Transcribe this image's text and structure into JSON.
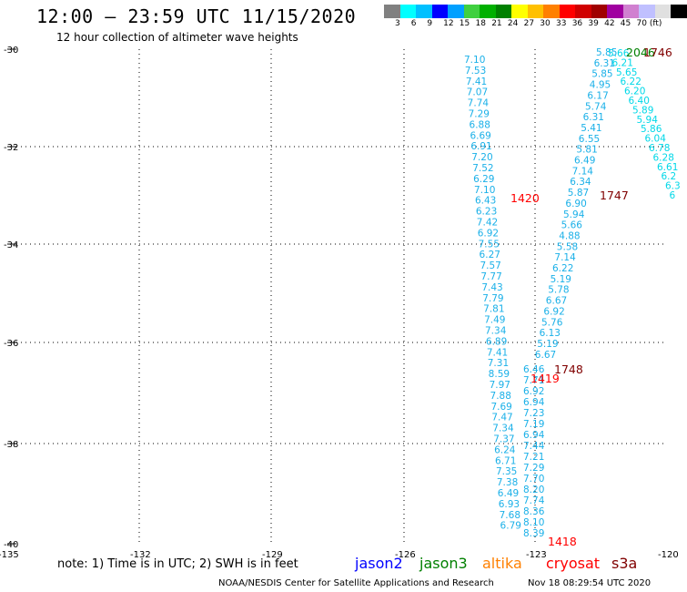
{
  "header": {
    "title": "12:00 – 23:59 UTC 11/15/2020",
    "subtitle": "12 hour collection of altimeter wave heights"
  },
  "scale": {
    "colors": [
      "#808080",
      "#00ffff",
      "#00c0ff",
      "#0000ff",
      "#00a0ff",
      "#40d040",
      "#00b000",
      "#008000",
      "#ffff00",
      "#ffc000",
      "#ff8000",
      "#ff0000",
      "#d00000",
      "#a00000",
      "#a000a0",
      "#d080d0",
      "#c0c0ff",
      "#e0e0e0",
      "#000000"
    ],
    "labels": [
      "3",
      "6",
      "9",
      "12",
      "15",
      "18",
      "21",
      "24",
      "27",
      "30",
      "33",
      "36",
      "39",
      "42",
      "45",
      "70 (ft)"
    ]
  },
  "axes": {
    "lat_labels": [
      "-30",
      "-32",
      "-34",
      "-36",
      "-38",
      "-40"
    ],
    "lon_labels": [
      "-135",
      "-132",
      "-129",
      "-126",
      "-123",
      "-120"
    ]
  },
  "map": {
    "map_values": [
      "7.10",
      "7.53",
      "7.41",
      "7.07",
      "7.74",
      "7.29",
      "6.88",
      "6.69",
      "6.91",
      "7.20",
      "7.52",
      "6.29",
      "7.10",
      "6.43",
      "6.23",
      "7.42",
      "6.92",
      "7.55",
      "6.27",
      "7.57",
      "7.77",
      "7.43",
      "7.79",
      "7.81",
      "7.49",
      "7.34",
      "6.89",
      "7.41",
      "7.31",
      "8.59",
      "7.97",
      "7.88",
      "7.69",
      "7.47",
      "7.34",
      "7.37",
      "6.24",
      "6.71",
      "7.35",
      "7.38",
      "6.49",
      "6.93",
      "7.68",
      "6.79"
    ],
    "track_2_values": [
      "6.46",
      "7.71",
      "6.92",
      "6.94",
      "7.23",
      "7.19",
      "6.94",
      "7.44",
      "7.21",
      "7.29",
      "7.70",
      "8.20",
      "7.74",
      "8.36",
      "8.10",
      "8.39"
    ],
    "track_3_values": [
      "5.85",
      "6.31",
      "5.85",
      "4.95",
      "6.17",
      "5.74",
      "6.31",
      "5.41",
      "6.55",
      "5.81",
      "6.49",
      "7.14",
      "6.34",
      "5.87",
      "6.90",
      "5.94",
      "5.66",
      "4.88",
      "5.58",
      "7.14",
      "6.22",
      "5.19",
      "5.78",
      "6.67",
      "6.92",
      "5.76",
      "6.13",
      "5.19",
      "6.67"
    ],
    "track_4_values": [
      "5.66",
      "6.21",
      "5.65",
      "6.22",
      "6.20",
      "6.40",
      "5.89",
      "5.94",
      "5.86",
      "6.04",
      "6.78",
      "6.28",
      "6.61",
      "6.2",
      "6.3",
      "6"
    ],
    "time_labels": [
      {
        "text": "1420",
        "color": "#ff0000"
      },
      {
        "text": "1747",
        "color": "#800000"
      },
      {
        "text": "1748",
        "color": "#800000"
      },
      {
        "text": "1419",
        "color": "#ff0000"
      },
      {
        "text": "1418",
        "color": "#ff0000"
      },
      {
        "text": "2046",
        "color": "#008000"
      },
      {
        "text": "1746",
        "color": "#800000"
      }
    ]
  },
  "note": "note: 1) Time is in UTC; 2) SWH is in feet",
  "satellites": [
    {
      "name": "jason2",
      "color": "#0000ff"
    },
    {
      "name": "jason3",
      "color": "#008000"
    },
    {
      "name": "altika",
      "color": "#ff8000"
    },
    {
      "name": "cryosat",
      "color": "#ff0000"
    },
    {
      "name": "s3a",
      "color": "#800000"
    }
  ],
  "footer": {
    "credit": "NOAA/NESDIS Center for Satellite Applications and Research",
    "timestamp": "Nov 18 08:29:54 UTC 2020"
  }
}
